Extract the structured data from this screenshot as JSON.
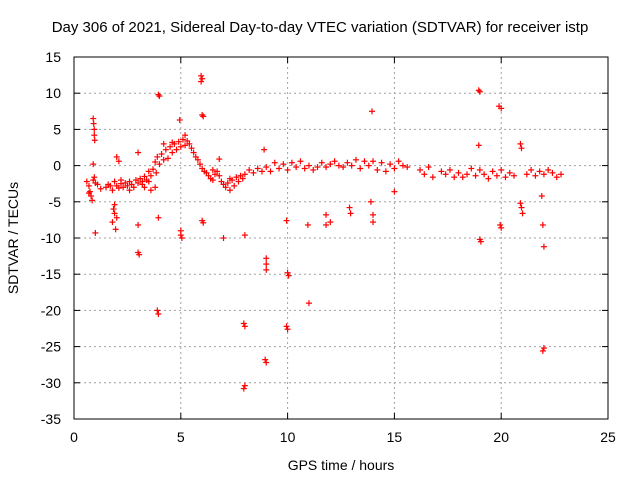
{
  "chart_data": {
    "type": "scatter",
    "title": "Day 306 of 2021, Sidereal Day-to-day VTEC variation (SDTVAR) for receiver istp",
    "xlabel": "GPS time / hours",
    "ylabel": "SDTVAR / TECUs",
    "xlim": [
      0,
      25
    ],
    "ylim": [
      -35,
      15
    ],
    "x_ticks": [
      0,
      5,
      10,
      15,
      20,
      25
    ],
    "y_ticks": [
      15,
      10,
      5,
      0,
      -5,
      -10,
      -15,
      -20,
      -25,
      -30,
      -35
    ],
    "grid": true,
    "marker": "+",
    "color": "#ff0000",
    "series": [
      {
        "name": "SDTVAR",
        "points": [
          [
            0.6,
            -2.2
          ],
          [
            0.7,
            -2.8
          ],
          [
            0.75,
            -3.6
          ],
          [
            0.8,
            -4.2
          ],
          [
            0.85,
            -4.8
          ],
          [
            0.9,
            -2.0
          ],
          [
            0.95,
            -1.6
          ],
          [
            1.0,
            -2.4
          ],
          [
            0.9,
            6.5
          ],
          [
            0.92,
            5.8
          ],
          [
            0.95,
            5.0
          ],
          [
            0.95,
            4.2
          ],
          [
            0.97,
            3.5
          ],
          [
            0.9,
            0.2
          ],
          [
            1.0,
            -9.3
          ],
          [
            1.5,
            -3.0
          ],
          [
            1.6,
            -2.6
          ],
          [
            1.7,
            -2.8
          ],
          [
            1.8,
            -3.4
          ],
          [
            1.9,
            -2.2
          ],
          [
            2.0,
            -2.8
          ],
          [
            2.1,
            -3.1
          ],
          [
            2.2,
            -2.5
          ],
          [
            2.3,
            -3.0
          ],
          [
            2.4,
            -2.4
          ],
          [
            2.5,
            -2.8
          ],
          [
            2.6,
            -2.2
          ],
          [
            2.7,
            -2.6
          ],
          [
            2.8,
            -3.0
          ],
          [
            2.9,
            -2.0
          ],
          [
            3.0,
            -2.4
          ],
          [
            3.1,
            -1.8
          ],
          [
            3.2,
            -2.2
          ],
          [
            3.3,
            -1.5
          ],
          [
            3.4,
            -2.0
          ],
          [
            3.5,
            -0.8
          ],
          [
            3.6,
            -1.4
          ],
          [
            3.7,
            -0.5
          ],
          [
            3.8,
            0.5
          ],
          [
            3.85,
            -1.0
          ],
          [
            3.9,
            1.2
          ],
          [
            4.0,
            0.2
          ],
          [
            4.1,
            1.6
          ],
          [
            4.2,
            0.8
          ],
          [
            4.3,
            2.2
          ],
          [
            4.4,
            1.0
          ],
          [
            4.5,
            2.6
          ],
          [
            4.6,
            1.8
          ],
          [
            4.7,
            3.0
          ],
          [
            4.8,
            2.2
          ],
          [
            4.9,
            3.3
          ],
          [
            5.0,
            2.6
          ],
          [
            5.1,
            3.6
          ],
          [
            5.2,
            4.2
          ],
          [
            5.3,
            3.4
          ],
          [
            5.4,
            3.0
          ],
          [
            5.5,
            2.4
          ],
          [
            5.6,
            1.8
          ],
          [
            5.7,
            1.2
          ],
          [
            5.8,
            0.8
          ],
          [
            5.9,
            0.2
          ],
          [
            6.0,
            -0.4
          ],
          [
            6.1,
            -0.8
          ],
          [
            6.2,
            -1.0
          ],
          [
            6.3,
            -1.4
          ],
          [
            6.4,
            -1.8
          ],
          [
            6.5,
            -2.0
          ],
          [
            6.6,
            -1.2
          ],
          [
            6.7,
            -0.8
          ],
          [
            6.8,
            -1.4
          ],
          [
            6.9,
            -2.2
          ],
          [
            7.0,
            -2.6
          ],
          [
            7.1,
            -3.0
          ],
          [
            7.2,
            -2.4
          ],
          [
            7.3,
            -3.4
          ],
          [
            7.4,
            -2.0
          ],
          [
            7.5,
            -2.8
          ],
          [
            7.6,
            -1.6
          ],
          [
            7.7,
            -2.2
          ],
          [
            7.8,
            -1.4
          ],
          [
            7.9,
            -1.8
          ],
          [
            3.8,
            -3.0
          ],
          [
            3.6,
            -3.4
          ],
          [
            3.5,
            -2.2
          ],
          [
            3.3,
            -3.0
          ],
          [
            3.2,
            -2.6
          ],
          [
            1.9,
            -5.4
          ],
          [
            1.85,
            -6.0
          ],
          [
            1.9,
            -6.6
          ],
          [
            2.0,
            -7.2
          ],
          [
            1.8,
            -7.8
          ],
          [
            1.95,
            -8.8
          ],
          [
            2.0,
            1.2
          ],
          [
            2.1,
            0.6
          ],
          [
            3.0,
            -8.2
          ],
          [
            3.0,
            -12.0
          ],
          [
            3.05,
            -12.3
          ],
          [
            3.0,
            1.8
          ],
          [
            3.95,
            9.8
          ],
          [
            4.0,
            9.6
          ],
          [
            3.95,
            -7.2
          ],
          [
            3.9,
            -20.0
          ],
          [
            3.95,
            -20.5
          ],
          [
            4.95,
            6.3
          ],
          [
            5.0,
            -9.0
          ],
          [
            5.0,
            -9.6
          ],
          [
            5.05,
            -10.0
          ],
          [
            5.95,
            12.4
          ],
          [
            6.0,
            12.0
          ],
          [
            5.95,
            11.6
          ],
          [
            6.0,
            7.0
          ],
          [
            6.05,
            6.8
          ],
          [
            6.0,
            -7.6
          ],
          [
            6.05,
            -7.9
          ],
          [
            6.8,
            0.9
          ],
          [
            7.0,
            -10.0
          ],
          [
            8.0,
            -1.2
          ],
          [
            8.2,
            -0.6
          ],
          [
            8.4,
            -1.0
          ],
          [
            8.6,
            -0.4
          ],
          [
            8.8,
            -0.8
          ],
          [
            9.0,
            -0.2
          ],
          [
            9.2,
            -0.8
          ],
          [
            9.4,
            0.4
          ],
          [
            9.6,
            -0.4
          ],
          [
            9.8,
            0.2
          ],
          [
            10.0,
            -0.6
          ],
          [
            10.2,
            0.4
          ],
          [
            10.4,
            -0.2
          ],
          [
            10.6,
            0.6
          ],
          [
            10.8,
            -0.4
          ],
          [
            11.0,
            0.0
          ],
          [
            11.2,
            -0.6
          ],
          [
            11.4,
            -0.2
          ],
          [
            11.6,
            0.4
          ],
          [
            11.8,
            -0.2
          ],
          [
            12.0,
            0.2
          ],
          [
            12.2,
            0.6
          ],
          [
            12.4,
            0.0
          ],
          [
            12.6,
            -0.2
          ],
          [
            12.8,
            0.4
          ],
          [
            13.0,
            0.0
          ],
          [
            13.2,
            0.8
          ],
          [
            13.4,
            -0.4
          ],
          [
            13.6,
            0.6
          ],
          [
            13.8,
            0.0
          ],
          [
            14.0,
            0.6
          ],
          [
            14.2,
            -0.6
          ],
          [
            14.4,
            0.4
          ],
          [
            14.6,
            -0.8
          ],
          [
            14.8,
            0.2
          ],
          [
            15.0,
            -0.4
          ],
          [
            15.2,
            0.6
          ],
          [
            15.4,
            0.0
          ],
          [
            15.6,
            -0.2
          ],
          [
            16.2,
            -0.6
          ],
          [
            16.4,
            -1.2
          ],
          [
            16.6,
            -0.2
          ],
          [
            16.8,
            -1.6
          ],
          [
            17.2,
            -0.8
          ],
          [
            17.4,
            -1.2
          ],
          [
            17.6,
            -0.6
          ],
          [
            17.8,
            -1.6
          ],
          [
            18.0,
            -1.0
          ],
          [
            18.2,
            -1.6
          ],
          [
            18.4,
            -1.2
          ],
          [
            18.6,
            -0.4
          ],
          [
            18.8,
            -1.4
          ],
          [
            19.0,
            -0.6
          ],
          [
            19.2,
            -1.2
          ],
          [
            19.4,
            -1.8
          ],
          [
            19.6,
            -0.8
          ],
          [
            19.8,
            -1.4
          ],
          [
            20.0,
            -0.6
          ],
          [
            20.2,
            -1.6
          ],
          [
            20.4,
            -1.0
          ],
          [
            20.6,
            -1.4
          ],
          [
            21.2,
            -1.2
          ],
          [
            21.4,
            -0.6
          ],
          [
            21.6,
            -1.4
          ],
          [
            21.8,
            -0.8
          ],
          [
            22.0,
            -1.2
          ],
          [
            22.2,
            -0.6
          ],
          [
            22.4,
            -1.0
          ],
          [
            22.6,
            -1.6
          ],
          [
            22.8,
            -1.2
          ],
          [
            8.0,
            -9.6
          ],
          [
            7.95,
            -21.8
          ],
          [
            8.0,
            -22.2
          ],
          [
            8.0,
            -30.4
          ],
          [
            7.95,
            -30.8
          ],
          [
            8.9,
            2.2
          ],
          [
            9.0,
            -12.8
          ],
          [
            9.0,
            -13.6
          ],
          [
            9.0,
            -14.4
          ],
          [
            8.95,
            -26.8
          ],
          [
            9.0,
            -27.2
          ],
          [
            9.95,
            -7.6
          ],
          [
            10.0,
            -14.8
          ],
          [
            10.05,
            -15.2
          ],
          [
            9.95,
            -22.2
          ],
          [
            10.0,
            -22.6
          ],
          [
            10.95,
            -8.2
          ],
          [
            11.0,
            -19.0
          ],
          [
            11.8,
            -6.8
          ],
          [
            11.8,
            -8.2
          ],
          [
            12.0,
            -7.8
          ],
          [
            12.9,
            -5.8
          ],
          [
            12.95,
            -6.6
          ],
          [
            13.9,
            -5.0
          ],
          [
            14.0,
            -6.8
          ],
          [
            14.0,
            -7.8
          ],
          [
            13.95,
            7.5
          ],
          [
            15.0,
            -3.6
          ],
          [
            18.95,
            10.4
          ],
          [
            19.0,
            10.2
          ],
          [
            18.95,
            2.8
          ],
          [
            19.0,
            -10.2
          ],
          [
            19.05,
            -10.5
          ],
          [
            19.9,
            8.2
          ],
          [
            20.0,
            7.9
          ],
          [
            19.95,
            -8.2
          ],
          [
            20.0,
            -8.6
          ],
          [
            20.9,
            3.0
          ],
          [
            20.95,
            2.4
          ],
          [
            20.9,
            -5.2
          ],
          [
            20.95,
            -5.8
          ],
          [
            21.0,
            -6.6
          ],
          [
            21.9,
            -4.2
          ],
          [
            21.95,
            -8.2
          ],
          [
            22.0,
            -11.2
          ],
          [
            22.0,
            -25.2
          ],
          [
            21.95,
            -25.6
          ],
          [
            0.7,
            -3.8
          ],
          [
            1.1,
            -2.6
          ],
          [
            1.25,
            -3.2
          ],
          [
            2.2,
            -2.0
          ],
          [
            2.6,
            -3.4
          ],
          [
            4.2,
            3.0
          ],
          [
            4.6,
            3.2
          ],
          [
            5.2,
            2.8
          ],
          [
            6.5,
            -0.6
          ],
          [
            7.3,
            -1.8
          ]
        ]
      }
    ]
  }
}
